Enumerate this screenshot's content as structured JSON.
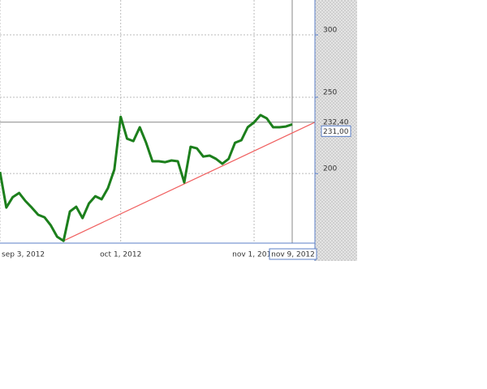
{
  "chart_data": {
    "type": "line",
    "categories": [
      "2012-09-04",
      "2012-09-05",
      "2012-09-06",
      "2012-09-07",
      "2012-09-10",
      "2012-09-11",
      "2012-09-12",
      "2012-09-13",
      "2012-09-14",
      "2012-09-17",
      "2012-09-18",
      "2012-09-19",
      "2012-09-20",
      "2012-09-21",
      "2012-09-24",
      "2012-09-25",
      "2012-09-26",
      "2012-09-27",
      "2012-09-28",
      "2012-10-01",
      "2012-10-02",
      "2012-10-03",
      "2012-10-04",
      "2012-10-05",
      "2012-10-08",
      "2012-10-09",
      "2012-10-10",
      "2012-10-11",
      "2012-10-12",
      "2012-10-15",
      "2012-10-16",
      "2012-10-17",
      "2012-10-18",
      "2012-10-19",
      "2012-10-22",
      "2012-10-23",
      "2012-10-24",
      "2012-10-25",
      "2012-10-26",
      "2012-10-31",
      "2012-11-01",
      "2012-11-02",
      "2012-11-05",
      "2012-11-06",
      "2012-11-07",
      "2012-11-08",
      "2012-11-09"
    ],
    "series": [
      {
        "color": "#1c7f1c",
        "values": [
          201.0,
          181.1,
          186.7,
          189.0,
          184.6,
          181.1,
          177.3,
          176.0,
          171.9,
          166.3,
          164.3,
          179.0,
          181.5,
          175.6,
          183.3,
          187.2,
          185.5,
          191.7,
          202.4,
          236.1,
          221.5,
          219.9,
          229.0,
          218.9,
          207.3,
          207.3,
          206.8,
          207.8,
          207.3,
          194.9,
          216.3,
          215.3,
          210.2,
          210.8,
          208.8,
          205.8,
          208.8,
          218.9,
          220.5,
          229.0,
          232.3,
          237.3,
          235.0,
          229.0,
          229.0,
          229.5,
          231.0
        ],
        "last_value_label": "231,00"
      }
    ],
    "ylim": [
      163.2,
      332.2
    ],
    "yticks": [
      200,
      250,
      300
    ],
    "log_scale": true,
    "grid": true,
    "xticks": [
      {
        "value": "2012-09-04",
        "label": "sep 3, 2012"
      },
      {
        "value": "2012-10-01",
        "label": "oct 1, 2012"
      },
      {
        "value": "2012-11-01",
        "label": "nov 1, 2012"
      }
    ],
    "trendline": {
      "color": "#f06060",
      "start": {
        "x": "2012-09-18",
        "value": 164.3
      },
      "end": {
        "x": "2012-11-09",
        "value": 225.2
      }
    },
    "crosshair": {
      "x": {
        "value": "2012-11-09",
        "label": "nov 9, 2012"
      },
      "y": {
        "value": 232.4,
        "label": "232,40"
      }
    }
  }
}
